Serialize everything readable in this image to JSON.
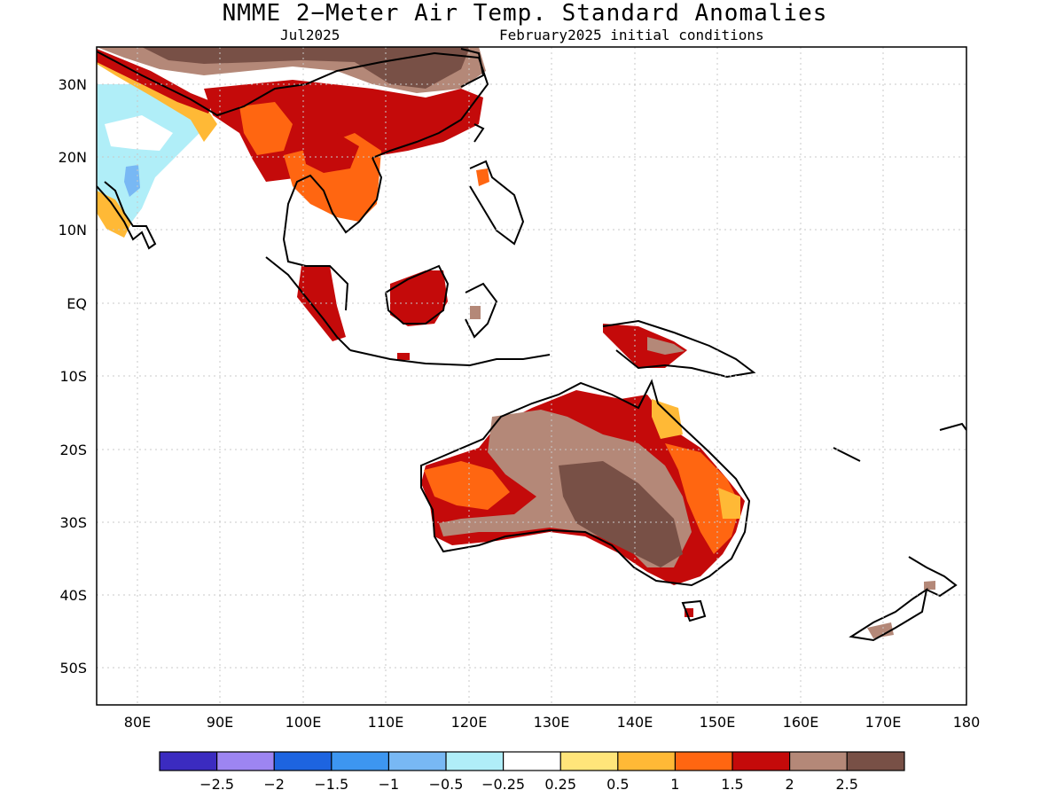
{
  "title": "NMME 2−Meter Air Temp. Standard Anomalies",
  "subtitle_left": "Jul2025",
  "subtitle_right": "February2025 initial conditions",
  "map": {
    "lon_range": [
      75,
      180
    ],
    "lat_range": [
      -55,
      35
    ],
    "lat_ticks": [
      {
        "value": 30,
        "label": "30N"
      },
      {
        "value": 20,
        "label": "20N"
      },
      {
        "value": 10,
        "label": "10N"
      },
      {
        "value": 0,
        "label": "EQ"
      },
      {
        "value": -10,
        "label": "10S"
      },
      {
        "value": -20,
        "label": "20S"
      },
      {
        "value": -30,
        "label": "30S"
      },
      {
        "value": -40,
        "label": "40S"
      },
      {
        "value": -50,
        "label": "50S"
      }
    ],
    "lon_ticks": [
      {
        "value": 80,
        "label": "80E"
      },
      {
        "value": 90,
        "label": "90E"
      },
      {
        "value": 100,
        "label": "100E"
      },
      {
        "value": 110,
        "label": "110E"
      },
      {
        "value": 120,
        "label": "120E"
      },
      {
        "value": 130,
        "label": "130E"
      },
      {
        "value": 140,
        "label": "140E"
      },
      {
        "value": 150,
        "label": "150E"
      },
      {
        "value": 160,
        "label": "160E"
      },
      {
        "value": 170,
        "label": "170E"
      },
      {
        "value": 180,
        "label": "180"
      }
    ]
  },
  "colorbar": {
    "colors": [
      "#3b2bc0",
      "#9d85f2",
      "#1d64e0",
      "#3d96f0",
      "#78b8f4",
      "#b0eef8",
      "#ffffff",
      "#ffe57a",
      "#ffb936",
      "#ff6611",
      "#c40a0a",
      "#b48878",
      "#785046"
    ],
    "labels": [
      "−2.5",
      "−2",
      "−1.5",
      "−1",
      "−0.5",
      "−0.25",
      "0.25",
      "0.5",
      "1",
      "1.5",
      "2",
      "2.5"
    ]
  }
}
